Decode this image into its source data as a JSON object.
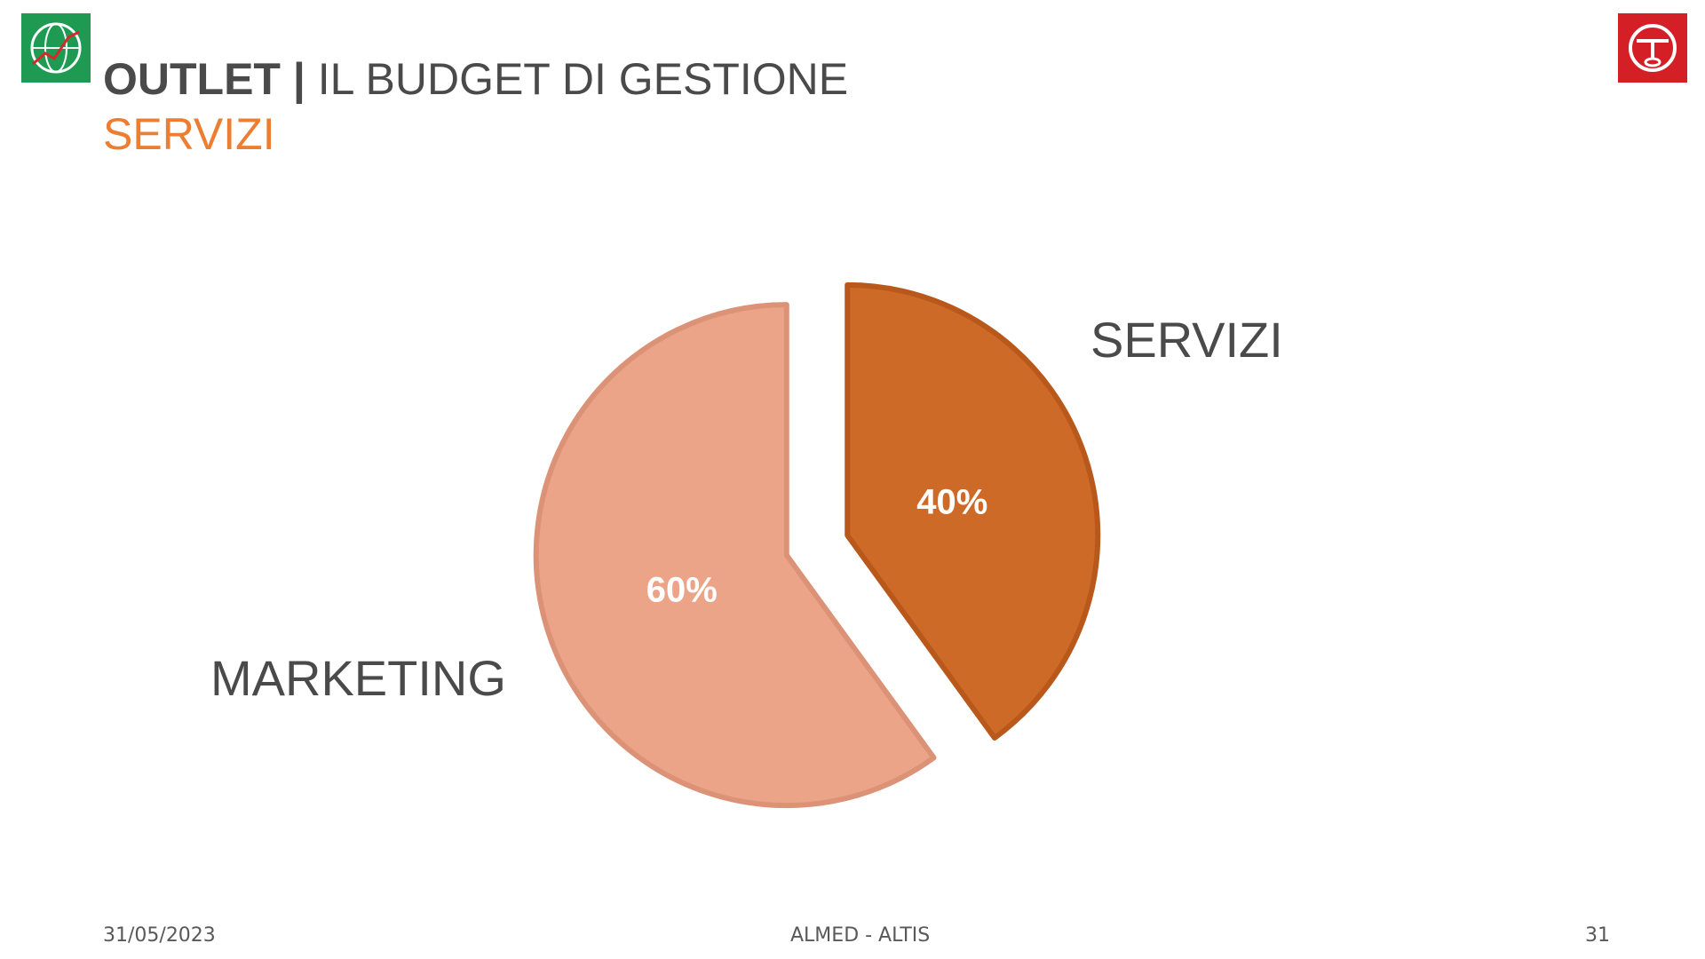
{
  "header": {
    "title_bold": "OUTLET |",
    "title_rest": "IL BUDGET DI GESTIONE",
    "subtitle": "SERVIZI"
  },
  "logos": {
    "left_icon": "globe-chart-icon",
    "left_color": "#1e9a52",
    "right_icon": "red-circle-emblem-icon",
    "right_color": "#d41f26"
  },
  "chart_data": {
    "type": "pie",
    "exploded": true,
    "categories": [
      "SERVIZI",
      "MARKETING"
    ],
    "values": [
      40,
      60
    ],
    "data_labels": [
      "40%",
      "60%"
    ],
    "colors": [
      "#cd6a28",
      "#eca488"
    ],
    "border_colors": [
      "#b9581b",
      "#dc9276"
    ],
    "legend": "none"
  },
  "footer": {
    "date": "31/05/2023",
    "center": "ALMED - ALTIS",
    "page": "31"
  }
}
